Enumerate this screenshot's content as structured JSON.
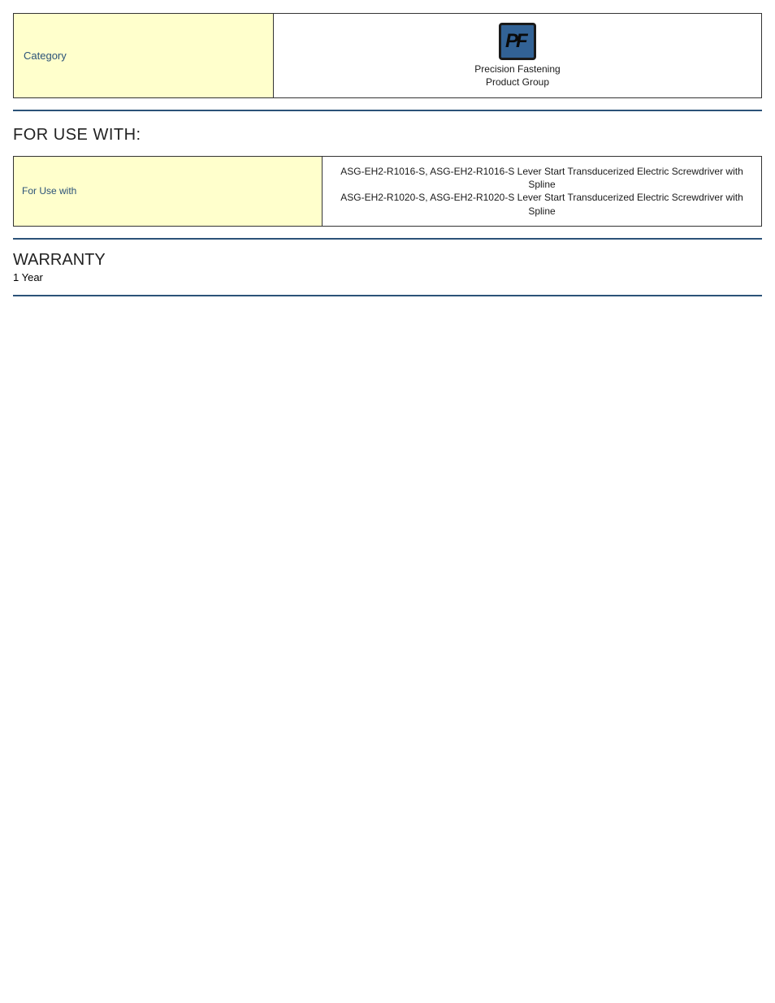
{
  "category_table": {
    "label": "Category",
    "icon_name": "pf-icon",
    "caption_line1": "Precision Fastening",
    "caption_line2": "Product Group"
  },
  "for_use_with": {
    "heading": "FOR USE WITH:",
    "label": "For Use with",
    "line1": "ASG-EH2-R1016-S, ASG-EH2-R1016-S Lever Start Transducerized Electric Screwdriver with Spline",
    "line2": "ASG-EH2-R1020-S, ASG-EH2-R1020-S Lever Start Transducerized Electric Screwdriver with Spline"
  },
  "warranty": {
    "heading": "WARRANTY",
    "value": "1 Year"
  },
  "colors": {
    "label_bg": "#ffffcc",
    "divider": "#2b5278",
    "border": "#333333",
    "icon_bg": "#326295",
    "icon_border": "#1a1a1a"
  }
}
